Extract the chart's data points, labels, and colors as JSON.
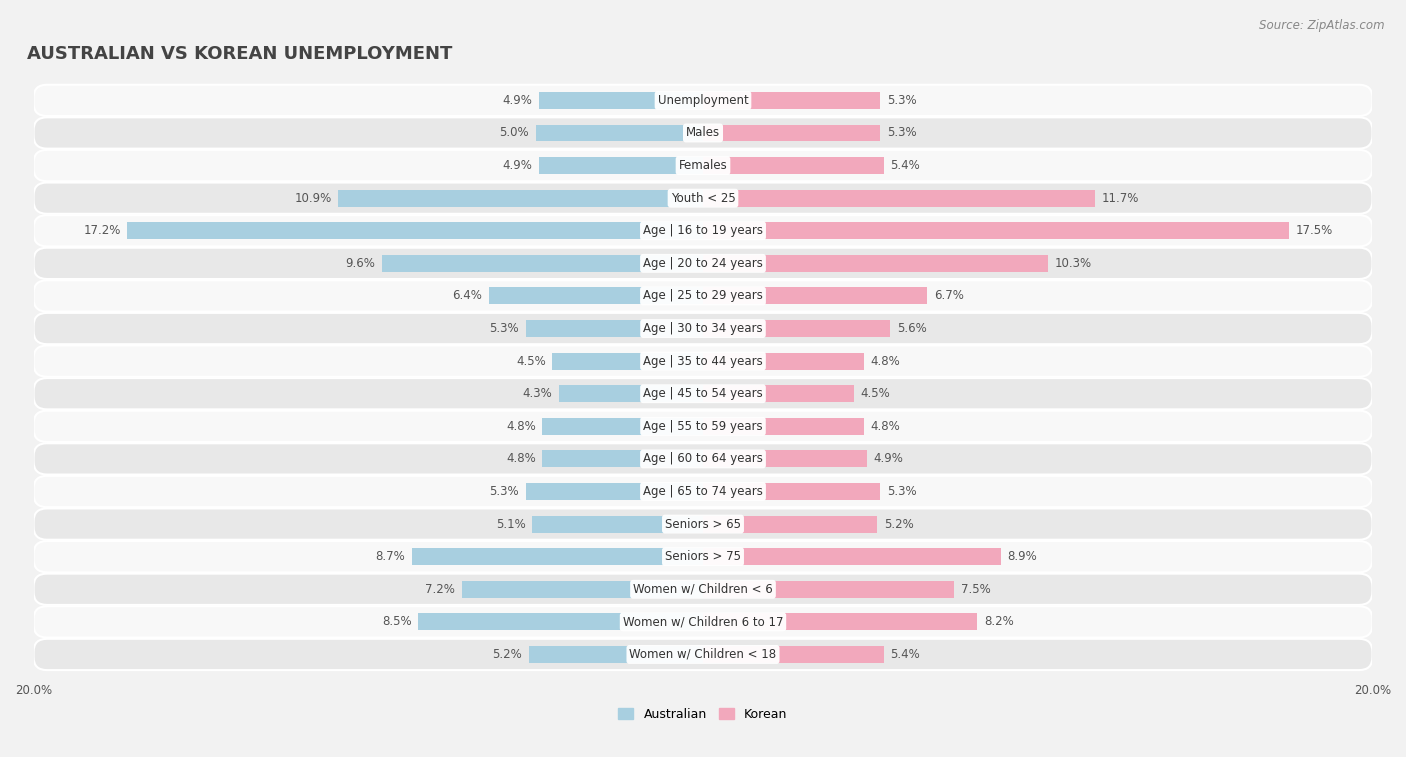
{
  "title": "AUSTRALIAN VS KOREAN UNEMPLOYMENT",
  "source": "Source: ZipAtlas.com",
  "categories": [
    "Unemployment",
    "Males",
    "Females",
    "Youth < 25",
    "Age | 16 to 19 years",
    "Age | 20 to 24 years",
    "Age | 25 to 29 years",
    "Age | 30 to 34 years",
    "Age | 35 to 44 years",
    "Age | 45 to 54 years",
    "Age | 55 to 59 years",
    "Age | 60 to 64 years",
    "Age | 65 to 74 years",
    "Seniors > 65",
    "Seniors > 75",
    "Women w/ Children < 6",
    "Women w/ Children 6 to 17",
    "Women w/ Children < 18"
  ],
  "australian": [
    4.9,
    5.0,
    4.9,
    10.9,
    17.2,
    9.6,
    6.4,
    5.3,
    4.5,
    4.3,
    4.8,
    4.8,
    5.3,
    5.1,
    8.7,
    7.2,
    8.5,
    5.2
  ],
  "korean": [
    5.3,
    5.3,
    5.4,
    11.7,
    17.5,
    10.3,
    6.7,
    5.6,
    4.8,
    4.5,
    4.8,
    4.9,
    5.3,
    5.2,
    8.9,
    7.5,
    8.2,
    5.4
  ],
  "australian_color": "#a8cfe0",
  "korean_color": "#f2a8bc",
  "bg_color": "#f2f2f2",
  "row_bg_light": "#f8f8f8",
  "row_bg_dark": "#e8e8e8",
  "axis_max": 20.0,
  "title_fontsize": 13,
  "source_fontsize": 8.5,
  "label_fontsize": 8.5,
  "value_fontsize": 8.5,
  "legend_labels": [
    "Australian",
    "Korean"
  ]
}
